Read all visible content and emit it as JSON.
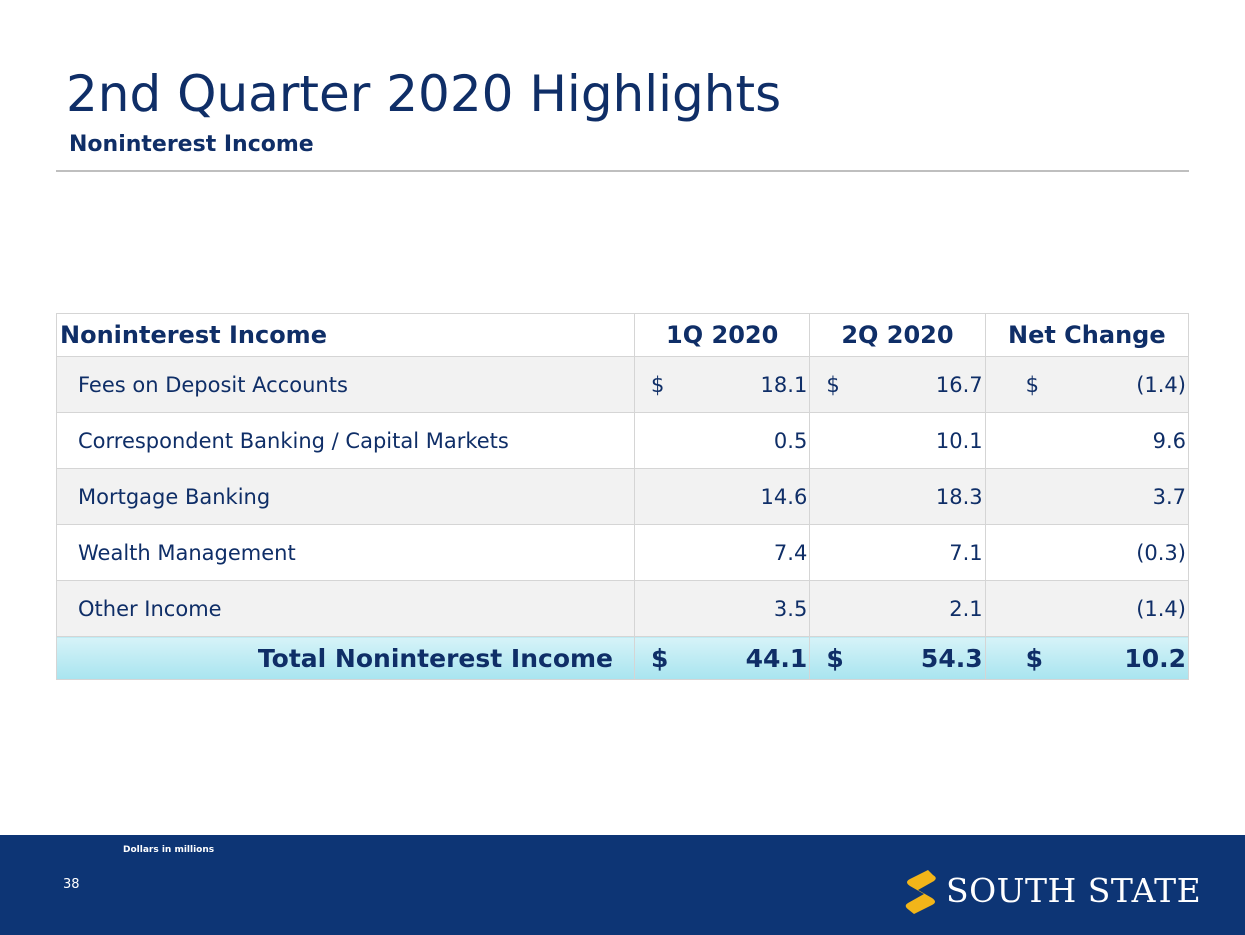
{
  "header": {
    "title": "2nd Quarter 2020 Highlights",
    "subtitle": "Noninterest Income"
  },
  "table": {
    "columns": [
      "Noninterest Income",
      "1Q 2020",
      "2Q 2020",
      "Net Change"
    ],
    "rows": [
      {
        "label": "Fees on Deposit Accounts",
        "q1_cur": "$",
        "q1": "18.1",
        "q2_cur": "$",
        "q2": "16.7",
        "net_cur": "$",
        "net": "(1.4)"
      },
      {
        "label": "Correspondent Banking / Capital Markets",
        "q1": "0.5",
        "q2": "10.1",
        "net": "9.6"
      },
      {
        "label": "Mortgage Banking",
        "q1": "14.6",
        "q2": "18.3",
        "net": "3.7"
      },
      {
        "label": "Wealth Management",
        "q1": "7.4",
        "q2": "7.1",
        "net": "(0.3)"
      },
      {
        "label": "Other Income",
        "q1": "3.5",
        "q2": "2.1",
        "net": "(1.4)"
      }
    ],
    "total": {
      "label": "Total Noninterest Income",
      "q1_cur": "$",
      "q1": "44.1",
      "q2_cur": "$",
      "q2": "54.3",
      "net_cur": "$",
      "net": "10.2"
    },
    "colors": {
      "text": "#0f2e67",
      "total_band": "#a8e4ef"
    }
  },
  "footer": {
    "note": "Dollars in millions",
    "page_number": "38",
    "brand": "SOUTH STATE",
    "logo_icon": "south-state-s-icon",
    "colors": {
      "background": "#0d3575",
      "logo_mark": "#f2b519"
    }
  }
}
